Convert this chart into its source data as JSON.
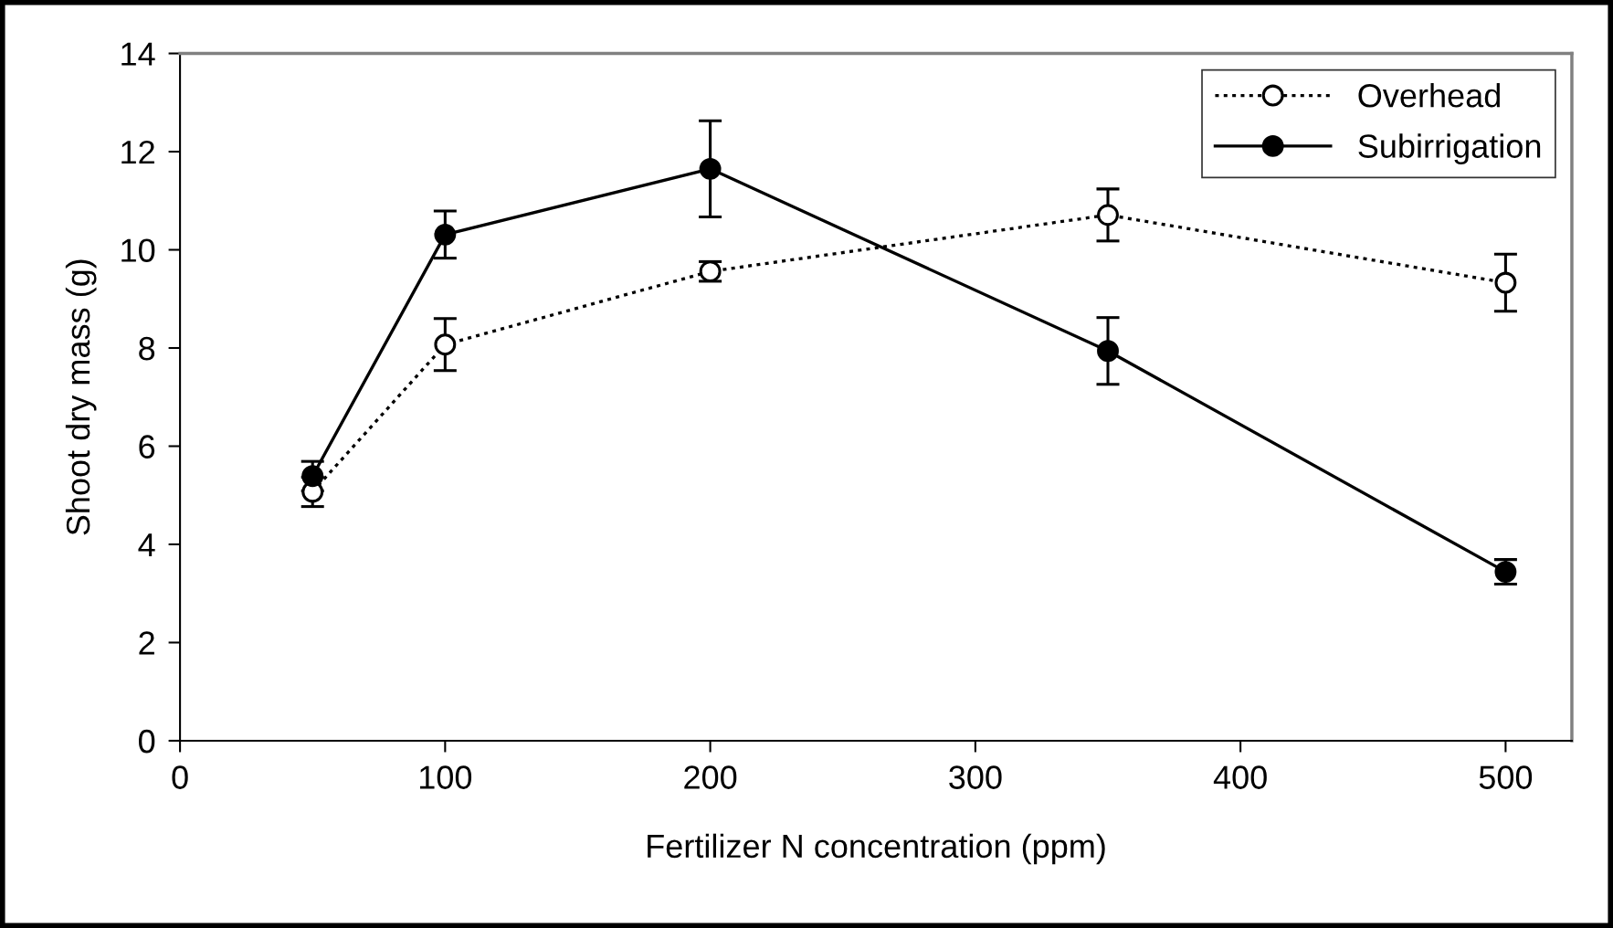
{
  "chart_data": {
    "type": "line",
    "xlabel": "Fertilizer N concentration (ppm)",
    "ylabel": "Shoot dry mass (g)",
    "x": [
      50,
      100,
      200,
      350,
      500
    ],
    "series": [
      {
        "name": "Overhead",
        "color": "#000000",
        "marker": "circle",
        "line_style": "dotted",
        "values": [
          5.07,
          8.07,
          9.56,
          10.71,
          9.33
        ],
        "errors": [
          0.3,
          0.53,
          0.2,
          0.53,
          0.58
        ]
      },
      {
        "name": "Subirrigation",
        "color": "#000000",
        "marker": "circle",
        "line_style": "solid",
        "values": [
          5.39,
          10.31,
          11.65,
          7.94,
          3.44
        ],
        "errors": [
          0.3,
          0.48,
          0.98,
          0.68,
          0.25
        ]
      }
    ],
    "xlim": [
      0,
      525
    ],
    "xticks": [
      0,
      100,
      200,
      300,
      400,
      500
    ],
    "ylim": [
      0,
      14
    ],
    "yticks": [
      0,
      2,
      4,
      6,
      8,
      10,
      12,
      14
    ],
    "grid": false,
    "legend": "top right"
  }
}
